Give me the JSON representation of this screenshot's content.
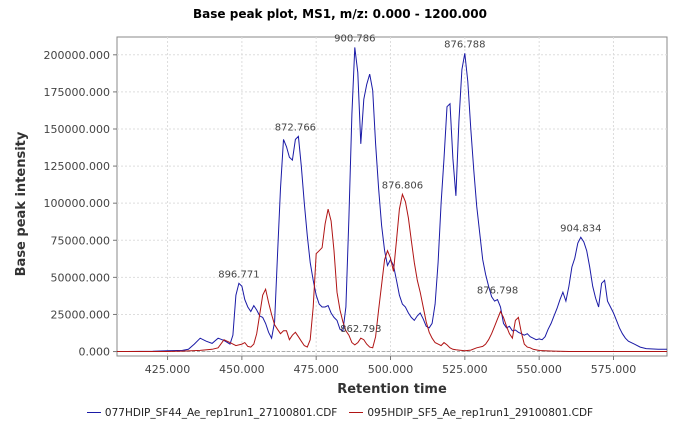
{
  "chart_data": {
    "type": "line",
    "title": "Base peak plot, MS1, m/z: 0.000 - 1200.000",
    "xlabel": "Retention time",
    "ylabel": "Base peak intensity",
    "xlim": [
      408,
      593
    ],
    "ylim": [
      -3000,
      212000
    ],
    "x_ticks": [
      {
        "value": 425,
        "label": "425.000"
      },
      {
        "value": 450,
        "label": "450.000"
      },
      {
        "value": 475,
        "label": "475.000"
      },
      {
        "value": 500,
        "label": "500.000"
      },
      {
        "value": 525,
        "label": "525.000"
      },
      {
        "value": 550,
        "label": "550.000"
      },
      {
        "value": 575,
        "label": "575.000"
      }
    ],
    "y_ticks": [
      {
        "value": 0,
        "label": "0.000"
      },
      {
        "value": 25000,
        "label": "25000.000"
      },
      {
        "value": 50000,
        "label": "50000.000"
      },
      {
        "value": 75000,
        "label": "75000.000"
      },
      {
        "value": 100000,
        "label": "100000.000"
      },
      {
        "value": 125000,
        "label": "125000.000"
      },
      {
        "value": 150000,
        "label": "150000.000"
      },
      {
        "value": 175000,
        "label": "175000.000"
      },
      {
        "value": 200000,
        "label": "200000.000"
      }
    ],
    "grid": true,
    "legend_position": "bottom",
    "series": [
      {
        "name": "077HDIP_SF44_Ae_rep1run1_27100801.CDF",
        "color": "#1a1aa6",
        "points": [
          [
            408,
            0
          ],
          [
            420,
            200
          ],
          [
            425,
            500
          ],
          [
            430,
            800
          ],
          [
            432,
            1500
          ],
          [
            434,
            5000
          ],
          [
            436,
            9000
          ],
          [
            438,
            7000
          ],
          [
            440,
            5500
          ],
          [
            442,
            9000
          ],
          [
            444,
            7500
          ],
          [
            446,
            5000
          ],
          [
            447,
            11000
          ],
          [
            448,
            38000
          ],
          [
            449,
            46000
          ],
          [
            450,
            44000
          ],
          [
            451,
            35000
          ],
          [
            452,
            30000
          ],
          [
            453,
            27000
          ],
          [
            454,
            31000
          ],
          [
            455,
            28000
          ],
          [
            456,
            24000
          ],
          [
            457,
            23000
          ],
          [
            458,
            19000
          ],
          [
            459,
            13000
          ],
          [
            460,
            9000
          ],
          [
            461,
            20000
          ],
          [
            462,
            65000
          ],
          [
            463,
            110000
          ],
          [
            464,
            143000
          ],
          [
            465,
            138000
          ],
          [
            466,
            131000
          ],
          [
            467,
            129000
          ],
          [
            468,
            143000
          ],
          [
            469,
            145000
          ],
          [
            470,
            125000
          ],
          [
            471,
            100000
          ],
          [
            472,
            78000
          ],
          [
            473,
            60000
          ],
          [
            474,
            48000
          ],
          [
            475,
            38000
          ],
          [
            476,
            32000
          ],
          [
            477,
            30000
          ],
          [
            478,
            30000
          ],
          [
            479,
            31000
          ],
          [
            480,
            26000
          ],
          [
            481,
            23000
          ],
          [
            482,
            21000
          ],
          [
            483,
            15000
          ],
          [
            484,
            14000
          ],
          [
            485,
            30000
          ],
          [
            486,
            90000
          ],
          [
            487,
            160000
          ],
          [
            488,
            205000
          ],
          [
            489,
            188000
          ],
          [
            490,
            140000
          ],
          [
            491,
            170000
          ],
          [
            492,
            180000
          ],
          [
            493,
            187000
          ],
          [
            494,
            176000
          ],
          [
            495,
            140000
          ],
          [
            496,
            110000
          ],
          [
            497,
            85000
          ],
          [
            498,
            68000
          ],
          [
            499,
            58000
          ],
          [
            500,
            62000
          ],
          [
            501,
            58000
          ],
          [
            502,
            48000
          ],
          [
            503,
            38000
          ],
          [
            504,
            32000
          ],
          [
            505,
            30000
          ],
          [
            506,
            26000
          ],
          [
            507,
            23000
          ],
          [
            508,
            21000
          ],
          [
            509,
            24000
          ],
          [
            510,
            26000
          ],
          [
            511,
            22000
          ],
          [
            512,
            17000
          ],
          [
            513,
            16000
          ],
          [
            514,
            19000
          ],
          [
            515,
            32000
          ],
          [
            516,
            60000
          ],
          [
            517,
            100000
          ],
          [
            518,
            130000
          ],
          [
            519,
            165000
          ],
          [
            520,
            167000
          ],
          [
            521,
            130000
          ],
          [
            522,
            105000
          ],
          [
            523,
            155000
          ],
          [
            524,
            190000
          ],
          [
            525,
            201000
          ],
          [
            526,
            182000
          ],
          [
            527,
            150000
          ],
          [
            528,
            122000
          ],
          [
            529,
            98000
          ],
          [
            530,
            80000
          ],
          [
            531,
            62000
          ],
          [
            532,
            52000
          ],
          [
            533,
            44000
          ],
          [
            534,
            37000
          ],
          [
            535,
            34000
          ],
          [
            536,
            35000
          ],
          [
            537,
            30000
          ],
          [
            538,
            19000
          ],
          [
            539,
            16000
          ],
          [
            540,
            17000
          ],
          [
            541,
            14000
          ],
          [
            542,
            14500
          ],
          [
            543,
            13000
          ],
          [
            544,
            12000
          ],
          [
            545,
            11000
          ],
          [
            546,
            12000
          ],
          [
            547,
            10000
          ],
          [
            548,
            9000
          ],
          [
            549,
            8000
          ],
          [
            550,
            8500
          ],
          [
            551,
            8000
          ],
          [
            552,
            10000
          ],
          [
            553,
            15000
          ],
          [
            554,
            19000
          ],
          [
            555,
            24000
          ],
          [
            556,
            29000
          ],
          [
            557,
            35000
          ],
          [
            558,
            40000
          ],
          [
            559,
            34000
          ],
          [
            560,
            44000
          ],
          [
            561,
            57000
          ],
          [
            562,
            63000
          ],
          [
            563,
            73000
          ],
          [
            564,
            77000
          ],
          [
            565,
            74000
          ],
          [
            566,
            68000
          ],
          [
            567,
            57000
          ],
          [
            568,
            44000
          ],
          [
            569,
            36000
          ],
          [
            570,
            30000
          ],
          [
            571,
            46000
          ],
          [
            572,
            48000
          ],
          [
            573,
            34000
          ],
          [
            574,
            30000
          ],
          [
            575,
            26000
          ],
          [
            576,
            21000
          ],
          [
            577,
            16000
          ],
          [
            578,
            12000
          ],
          [
            579,
            9000
          ],
          [
            580,
            7000
          ],
          [
            582,
            5000
          ],
          [
            584,
            3000
          ],
          [
            586,
            2000
          ],
          [
            590,
            1500
          ],
          [
            593,
            1500
          ]
        ]
      },
      {
        "name": "095HDIP_SF5_Ae_rep1run1_29100801.CDF",
        "color": "#b01414",
        "points": [
          [
            408,
            0
          ],
          [
            425,
            0
          ],
          [
            430,
            300
          ],
          [
            436,
            800
          ],
          [
            440,
            1500
          ],
          [
            442,
            2500
          ],
          [
            444,
            8000
          ],
          [
            446,
            6000
          ],
          [
            448,
            4000
          ],
          [
            450,
            5000
          ],
          [
            451,
            6000
          ],
          [
            452,
            3500
          ],
          [
            453,
            3000
          ],
          [
            454,
            5000
          ],
          [
            455,
            12000
          ],
          [
            456,
            25000
          ],
          [
            457,
            38000
          ],
          [
            458,
            42000
          ],
          [
            459,
            33000
          ],
          [
            460,
            25000
          ],
          [
            461,
            18000
          ],
          [
            462,
            15000
          ],
          [
            463,
            12000
          ],
          [
            464,
            14000
          ],
          [
            465,
            14000
          ],
          [
            466,
            8000
          ],
          [
            467,
            11000
          ],
          [
            468,
            13000
          ],
          [
            469,
            10000
          ],
          [
            470,
            7000
          ],
          [
            471,
            4000
          ],
          [
            472,
            3000
          ],
          [
            473,
            8000
          ],
          [
            474,
            30000
          ],
          [
            475,
            66000
          ],
          [
            476,
            68000
          ],
          [
            477,
            70000
          ],
          [
            478,
            86000
          ],
          [
            479,
            96000
          ],
          [
            480,
            88000
          ],
          [
            481,
            68000
          ],
          [
            482,
            40000
          ],
          [
            483,
            28000
          ],
          [
            484,
            20000
          ],
          [
            485,
            14000
          ],
          [
            486,
            11000
          ],
          [
            487,
            6000
          ],
          [
            488,
            4500
          ],
          [
            489,
            6000
          ],
          [
            490,
            9000
          ],
          [
            491,
            8000
          ],
          [
            492,
            5000
          ],
          [
            493,
            3000
          ],
          [
            494,
            2500
          ],
          [
            495,
            10000
          ],
          [
            496,
            28000
          ],
          [
            497,
            45000
          ],
          [
            498,
            62000
          ],
          [
            499,
            68000
          ],
          [
            500,
            63000
          ],
          [
            501,
            54000
          ],
          [
            502,
            75000
          ],
          [
            503,
            96000
          ],
          [
            504,
            106000
          ],
          [
            505,
            101000
          ],
          [
            506,
            90000
          ],
          [
            507,
            75000
          ],
          [
            508,
            60000
          ],
          [
            509,
            48000
          ],
          [
            510,
            40000
          ],
          [
            511,
            30000
          ],
          [
            512,
            20000
          ],
          [
            513,
            13000
          ],
          [
            514,
            9000
          ],
          [
            515,
            6000
          ],
          [
            516,
            5000
          ],
          [
            517,
            4000
          ],
          [
            518,
            6000
          ],
          [
            519,
            4500
          ],
          [
            520,
            2500
          ],
          [
            521,
            1500
          ],
          [
            522,
            1200
          ],
          [
            523,
            1000
          ],
          [
            525,
            500
          ],
          [
            527,
            1000
          ],
          [
            529,
            2500
          ],
          [
            531,
            3500
          ],
          [
            532,
            5000
          ],
          [
            533,
            8000
          ],
          [
            534,
            12000
          ],
          [
            535,
            17000
          ],
          [
            536,
            22000
          ],
          [
            537,
            27000
          ],
          [
            538,
            23000
          ],
          [
            539,
            17000
          ],
          [
            540,
            12000
          ],
          [
            541,
            9000
          ],
          [
            542,
            21000
          ],
          [
            543,
            23000
          ],
          [
            544,
            13000
          ],
          [
            545,
            5000
          ],
          [
            546,
            3000
          ],
          [
            547,
            2500
          ],
          [
            548,
            1500
          ],
          [
            550,
            700
          ],
          [
            555,
            300
          ],
          [
            560,
            0
          ],
          [
            593,
            0
          ]
        ]
      }
    ],
    "annotations": [
      {
        "label": "900.786",
        "x": 488,
        "y": 205000
      },
      {
        "label": "876.788",
        "x": 525,
        "y": 201000
      },
      {
        "label": "872.766",
        "x": 468,
        "y": 145000
      },
      {
        "label": "876.806",
        "x": 504,
        "y": 106000
      },
      {
        "label": "904.834",
        "x": 564,
        "y": 77000
      },
      {
        "label": "896.771",
        "x": 449,
        "y": 46000
      },
      {
        "label": "876.798",
        "x": 536,
        "y": 35000
      },
      {
        "label": "862.793",
        "x": 490,
        "y": 9000
      }
    ]
  }
}
